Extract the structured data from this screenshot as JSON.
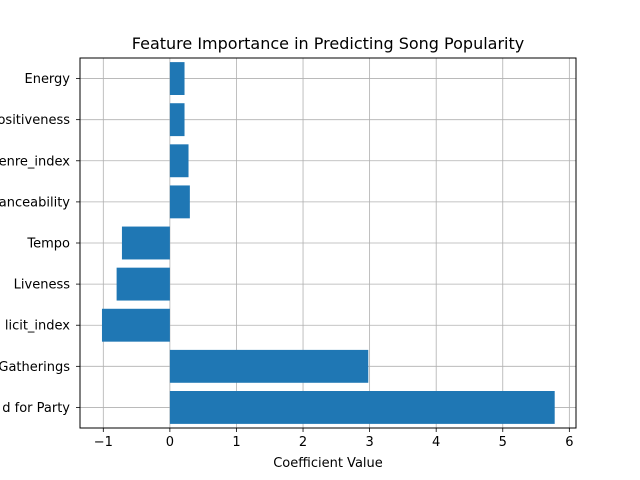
{
  "chart_data": {
    "type": "bar",
    "orientation": "horizontal",
    "title": "Feature Importance in Predicting Song Popularity",
    "xlabel": "Coefficient Value",
    "ylabel": "",
    "categories": [
      "Energy",
      "ositiveness",
      "enre_index",
      "anceability",
      "Tempo",
      "Liveness",
      "licit_index",
      "Gatherings",
      "d for Party"
    ],
    "values": [
      0.22,
      0.22,
      0.28,
      0.3,
      -0.72,
      -0.8,
      -1.02,
      2.98,
      5.78
    ],
    "xlim": [
      -1.35,
      6.1
    ],
    "xticks": [
      -1,
      0,
      1,
      2,
      3,
      4,
      5,
      6
    ],
    "xtick_labels": [
      "−1",
      "0",
      "1",
      "2",
      "3",
      "4",
      "5",
      "6"
    ],
    "grid": true,
    "bar_color": "#1f77b4"
  }
}
